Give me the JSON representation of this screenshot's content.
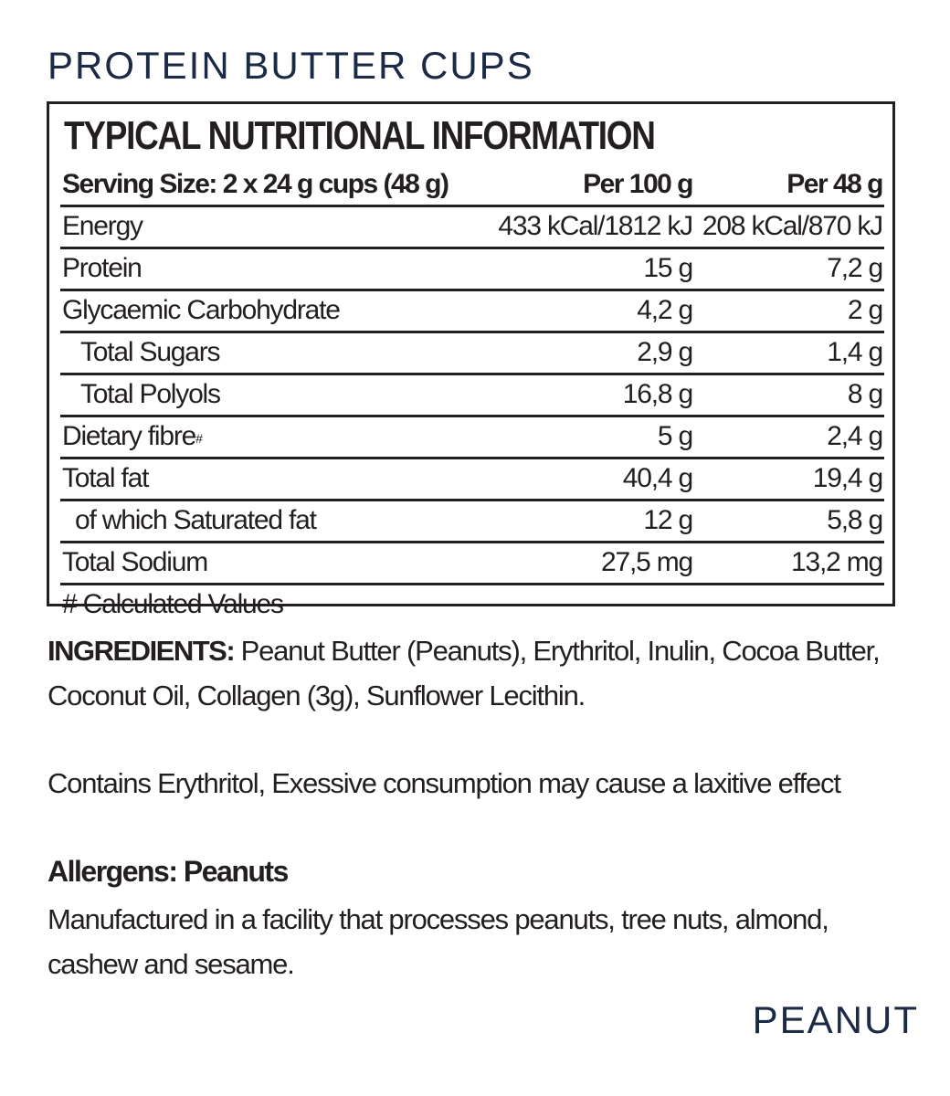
{
  "product_title": "PROTEIN BUTTER CUPS",
  "panel": {
    "heading": "TYPICAL NUTRITIONAL INFORMATION",
    "header": {
      "label": "Serving Size: 2 x 24 g cups (48 g)",
      "per100": "Per 100 g",
      "per48": "Per 48 g"
    },
    "rows": [
      {
        "label": "Energy",
        "per100": "433 kCal/1812 kJ",
        "per48": "208 kCal/870 kJ"
      },
      {
        "label": "Protein",
        "per100": "15 g",
        "per48": "7,2 g"
      },
      {
        "label": "Glycaemic Carbohydrate",
        "per100": "4,2 g",
        "per48": "2 g"
      },
      {
        "label": "Total Sugars",
        "per100": "2,9 g",
        "per48": "1,4 g"
      },
      {
        "label": "Total Polyols",
        "per100": "16,8 g",
        "per48": "8 g"
      },
      {
        "label": "Dietary fibre",
        "mark": "#",
        "per100": "5 g",
        "per48": "2,4 g"
      },
      {
        "label": "Total fat",
        "per100": "40,4 g",
        "per48": "19,4 g"
      },
      {
        "label": "of which Saturated fat",
        "per100": "12 g",
        "per48": "5,8 g"
      },
      {
        "label": "Total Sodium",
        "per100": "27,5 mg",
        "per48": "13,2 mg"
      }
    ],
    "footnote": "# Calculated Values"
  },
  "ingredients": {
    "label": "INGREDIENTS:",
    "text": " Peanut Butter (Peanuts), Erythritol, Inulin, Cocoa Butter, Coconut Oil, Collagen (3g), Sunflower Lecithin."
  },
  "warning": "Contains Erythritol, Exessive consumption may cause a laxitive effect",
  "allergens": {
    "label": "Allergens: Peanuts",
    "facility": "Manufactured in a facility that processes peanuts, tree nuts, almond, cashew and sesame."
  },
  "flavour": "PEANUT",
  "colors": {
    "title_navy": "#1b2a45",
    "text": "#231f20",
    "background": "#ffffff"
  }
}
